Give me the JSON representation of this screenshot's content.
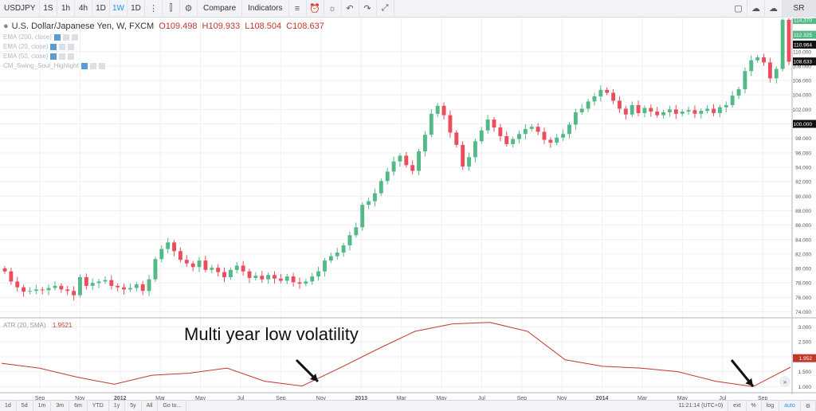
{
  "toolbar": {
    "symbol": "USDJPY",
    "resolutions": [
      "1S",
      "1h",
      "4h",
      "1D",
      "1W",
      "1D"
    ],
    "active_resolution": "1W",
    "compare_label": "Compare",
    "indicators_label": "Indicators",
    "right_label": "SR"
  },
  "legend": {
    "title": "U.S. Dollar/Japanese Yen, W, FXCM",
    "open": "O109.498",
    "high": "H109.933",
    "low": "L108.504",
    "close": "C108.637",
    "studies": [
      "EMA (200, close)",
      "EMA (20, close)",
      "EMA (50, close)",
      "CM_Swing_Soul_Highlight"
    ]
  },
  "atr_legend": {
    "label": "ATR (20, SMA)",
    "value": "1.9521"
  },
  "annotation": "Multi year low volatility",
  "bottombar": {
    "ranges": [
      "1d",
      "5d",
      "1m",
      "3m",
      "6m",
      "YTD",
      "1y",
      "5y",
      "All",
      "Go to..."
    ],
    "time": "11:21:14 (UTC+0)",
    "options": [
      "ext",
      "%",
      "log",
      "auto"
    ]
  },
  "chart_data": [
    {
      "type": "candlestick",
      "title": "U.S. Dollar/Japanese Yen, W, FXCM",
      "ylim": [
        73.4,
        114.6
      ],
      "y_ticks": [
        74,
        76,
        78,
        80,
        82,
        84,
        86,
        88,
        90,
        92,
        94,
        96,
        98,
        100,
        102,
        104,
        106,
        108,
        110
      ],
      "x_ticks": [
        "Sep",
        "Nov",
        "2012",
        "Mar",
        "May",
        "Jul",
        "Sep",
        "Nov",
        "2013",
        "Mar",
        "May",
        "Jul",
        "Sep",
        "Nov",
        "2014",
        "Mar",
        "May",
        "Jul",
        "Sep"
      ],
      "price_labels": [
        "114.370",
        "112.325",
        "110.964",
        "108.633",
        "100.000"
      ],
      "closes": [
        79.6,
        78.2,
        77.4,
        76.8,
        76.9,
        77.1,
        77.0,
        77.3,
        77.6,
        77.1,
        76.9,
        76.3,
        78.8,
        77.6,
        78.0,
        78.2,
        78.4,
        77.6,
        77.4,
        77.1,
        77.3,
        77.8,
        76.9,
        78.5,
        81.3,
        82.7,
        83.6,
        82.4,
        81.2,
        80.7,
        80.2,
        81.1,
        79.8,
        80.1,
        79.5,
        78.8,
        79.8,
        80.4,
        79.6,
        78.7,
        79.0,
        78.5,
        79.1,
        78.6,
        78.3,
        78.9,
        78.1,
        77.9,
        78.2,
        78.9,
        79.6,
        81.1,
        81.7,
        82.2,
        83.2,
        84.6,
        85.7,
        88.8,
        89.3,
        90.4,
        92.1,
        93.4,
        94.8,
        95.6,
        94.3,
        93.5,
        96.2,
        98.5,
        101.4,
        102.5,
        101.2,
        98.8,
        97.1,
        94.1,
        95.4,
        97.6,
        99.1,
        100.6,
        99.5,
        98.3,
        97.2,
        97.9,
        98.6,
        99.3,
        99.6,
        98.9,
        97.8,
        97.4,
        98.1,
        98.6,
        99.9,
        101.6,
        102.1,
        103.1,
        103.8,
        104.7,
        104.3,
        103.2,
        102.1,
        101.3,
        102.6,
        101.5,
        102.2,
        101.7,
        101.2,
        101.6,
        102.0,
        101.4,
        101.7,
        101.9,
        101.4,
        101.8,
        102.1,
        101.5,
        102.3,
        102.6,
        103.9,
        104.8,
        107.3,
        108.8,
        109.2,
        108.5,
        106.3,
        107.6,
        114.4,
        108.6
      ],
      "up_color": "#53b987",
      "down_color": "#eb4d5c"
    },
    {
      "type": "line",
      "title": "ATR (20, SMA)",
      "ylim": [
        0.85,
        3.25
      ],
      "y_ticks": [
        1.0,
        1.5,
        2.0,
        2.5,
        3.0
      ],
      "x": [
        "2011-Jul",
        "2011-Sep",
        "2011-Nov",
        "2012-Jan",
        "2012-Mar",
        "2012-May",
        "2012-Jul",
        "2012-Sep",
        "2012-Nov",
        "2013-Jan",
        "2013-Mar",
        "2013-May",
        "2013-Jul",
        "2013-Aug",
        "2013-Sep",
        "2013-Nov",
        "2014-Jan",
        "2014-Mar",
        "2014-May",
        "2014-Jul",
        "2014-Sep",
        "2014-Oct"
      ],
      "values": [
        1.78,
        1.62,
        1.32,
        1.08,
        1.38,
        1.45,
        1.62,
        1.18,
        1.02,
        1.62,
        2.25,
        2.85,
        3.1,
        3.15,
        2.85,
        1.9,
        1.68,
        1.62,
        1.5,
        1.18,
        1.0,
        1.65
      ],
      "line_color": "#c0392b"
    }
  ],
  "colors": {
    "accent": "#2196f3",
    "grid": "#eef0f3",
    "axis_text": "#555555"
  }
}
